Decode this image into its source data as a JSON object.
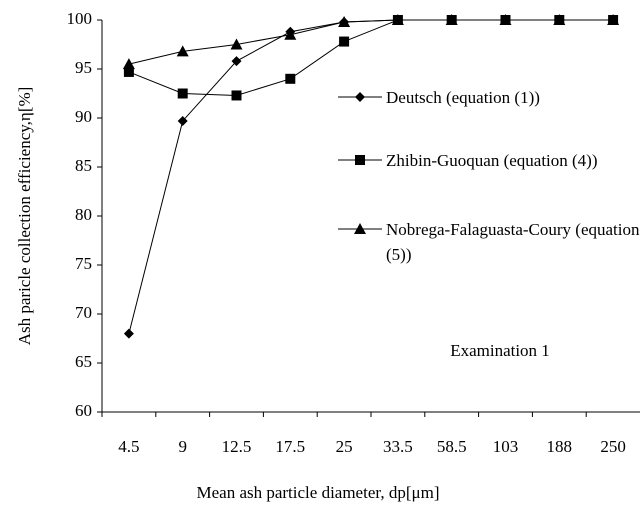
{
  "chart_data": {
    "type": "line",
    "categories": [
      "4.5",
      "9",
      "12.5",
      "17.5",
      "25",
      "33.5",
      "58.5",
      "103",
      "188",
      "250"
    ],
    "series": [
      {
        "name": "Deutsch (equation (1))",
        "color": "#000000",
        "marker": "diamond",
        "values": [
          68,
          89.7,
          95.8,
          98.8,
          99.8,
          100,
          100,
          100,
          100,
          100
        ]
      },
      {
        "name": "Zhibin-Guoquan (equation (4))",
        "color": "#000000",
        "marker": "square",
        "values": [
          94.7,
          92.5,
          92.3,
          94,
          97.8,
          100,
          100,
          100,
          100,
          100
        ]
      },
      {
        "name": "Nobrega-Falaguasta-Coury (equation (5))",
        "color": "#000000",
        "marker": "triangle",
        "values": [
          95.5,
          96.8,
          97.5,
          98.5,
          99.8,
          100,
          100,
          100,
          100,
          100
        ]
      }
    ],
    "ylim": [
      60,
      100
    ],
    "yticks": [
      60,
      65,
      70,
      75,
      80,
      85,
      90,
      95,
      100
    ],
    "xlabel": "Mean ash particle diameter, dp[μm]",
    "ylabel": "Ash paricle collection efficiency,η[%]",
    "annotation": "Examination 1",
    "grid": false
  }
}
